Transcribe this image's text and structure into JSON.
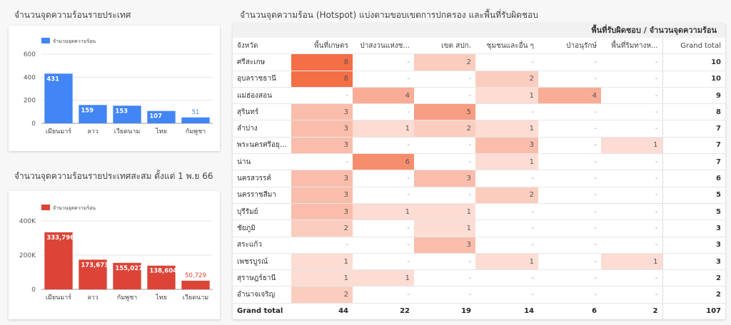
{
  "chart1": {
    "title": "จำนวนจุดความร้อนรายประเทศ",
    "legend": "จำนวนจุดความร้อน",
    "color": "#4285f4",
    "chart_data": {
      "type": "bar",
      "categories": [
        "เมียนมาร์",
        "ลาว",
        "เวียดนาม",
        "ไทย",
        "กัมพูชา"
      ],
      "values": [
        431,
        159,
        153,
        107,
        51
      ],
      "ylim": [
        0,
        600
      ],
      "yticks": [
        "0",
        "200",
        "400",
        "600"
      ],
      "legend_position": "top-left"
    }
  },
  "chart2": {
    "title": "จำนวนจุดความร้อนรายประเทศสะสม ตั้งแต่ 1 พ.ย 66",
    "legend": "จำนวนจุดความร้อน",
    "color": "#db4437",
    "chart_data": {
      "type": "bar",
      "categories": [
        "เมียนมาร์",
        "ลาว",
        "กัมพูชา",
        "ไทย",
        "เวียดนาม"
      ],
      "values": [
        333796,
        173673,
        155027,
        138604,
        50729
      ],
      "labels": [
        "333,796",
        "173,673",
        "155,027",
        "138,604",
        "50,729"
      ],
      "ylim": [
        0,
        400000
      ],
      "yticks": [
        "0",
        "200K",
        "400K"
      ],
      "legend_position": "top-left"
    }
  },
  "table": {
    "title": "จำนวนจุดความร้อน (Hotspot) แบ่งตามขอบเขตการปกครอง และพื้นที่รับผิดชอบ",
    "header_top": "พื้นที่รับผิดชอบ / จำนวนจุดความร้อน",
    "row_header": "จังหวัด",
    "columns": [
      "พื้นที่เกษตร",
      "ป่าสงวนแห่งช...",
      "เขต สปก.",
      "ชุมชนและอื่น ๆ",
      "ป่าอนุรักษ์",
      "พื้นที่ริมทางห...",
      "Grand total"
    ],
    "chart_data": {
      "type": "table",
      "rows": [
        {
          "name": "ศรีสะเกษ",
          "values": [
            8,
            null,
            2,
            null,
            null,
            null
          ],
          "total": 10
        },
        {
          "name": "อุบลราชธานี",
          "values": [
            8,
            null,
            null,
            2,
            null,
            null
          ],
          "total": 10
        },
        {
          "name": "แม่ฮ่องสอน",
          "values": [
            null,
            4,
            null,
            1,
            4,
            null
          ],
          "total": 9
        },
        {
          "name": "สุรินทร์",
          "values": [
            3,
            null,
            5,
            null,
            null,
            null
          ],
          "total": 8
        },
        {
          "name": "ลำปาง",
          "values": [
            3,
            1,
            2,
            1,
            null,
            null
          ],
          "total": 7
        },
        {
          "name": "พระนครศรีอยุธ...",
          "values": [
            3,
            null,
            null,
            3,
            null,
            1
          ],
          "total": 7
        },
        {
          "name": "น่าน",
          "values": [
            null,
            6,
            null,
            1,
            null,
            null
          ],
          "total": 7
        },
        {
          "name": "นครสวรรค์",
          "values": [
            3,
            null,
            3,
            null,
            null,
            null
          ],
          "total": 6
        },
        {
          "name": "นครราชสีมา",
          "values": [
            3,
            null,
            null,
            2,
            null,
            null
          ],
          "total": 5
        },
        {
          "name": "บุรีรัมย์",
          "values": [
            3,
            1,
            1,
            null,
            null,
            null
          ],
          "total": 5
        },
        {
          "name": "ชัยภูมิ",
          "values": [
            2,
            null,
            1,
            null,
            null,
            null
          ],
          "total": 3
        },
        {
          "name": "สระแก้ว",
          "values": [
            null,
            null,
            3,
            null,
            null,
            null
          ],
          "total": 3
        },
        {
          "name": "เพชรบูรณ์",
          "values": [
            1,
            null,
            null,
            1,
            null,
            1
          ],
          "total": 3
        },
        {
          "name": "สุราษฎร์ธานี",
          "values": [
            1,
            1,
            null,
            null,
            null,
            null
          ],
          "total": 2
        },
        {
          "name": "อำนาจเจริญ",
          "values": [
            2,
            null,
            null,
            null,
            null,
            null
          ],
          "total": 2
        }
      ],
      "grand_total_label": "Grand total",
      "grand_totals": [
        44,
        22,
        19,
        14,
        6,
        2,
        107
      ]
    }
  }
}
